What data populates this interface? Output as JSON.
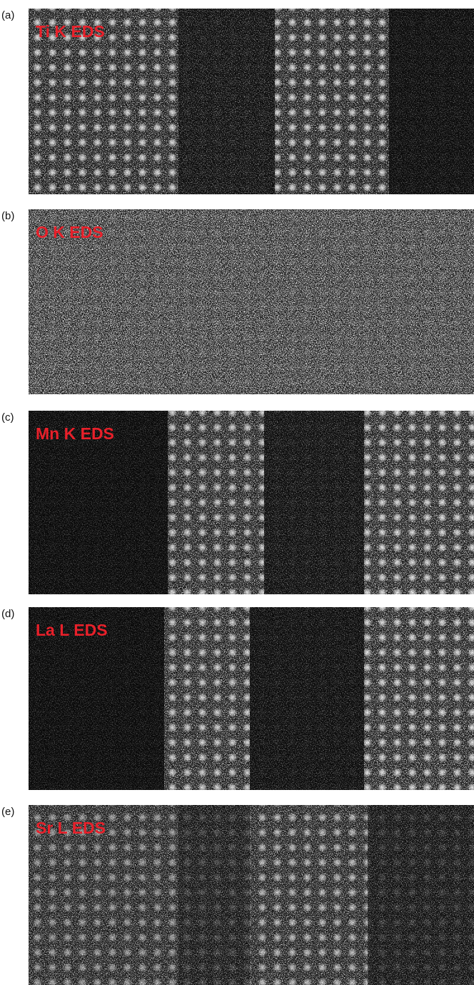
{
  "panels": [
    {
      "label": "(a)",
      "title": "Ti K EDS"
    },
    {
      "label": "(b)",
      "title": "O K EDS"
    },
    {
      "label": "(c)",
      "title": "Mn K EDS"
    },
    {
      "label": "(d)",
      "title": "La L EDS"
    },
    {
      "label": "(e)",
      "title": "Sr L EDS"
    }
  ]
}
